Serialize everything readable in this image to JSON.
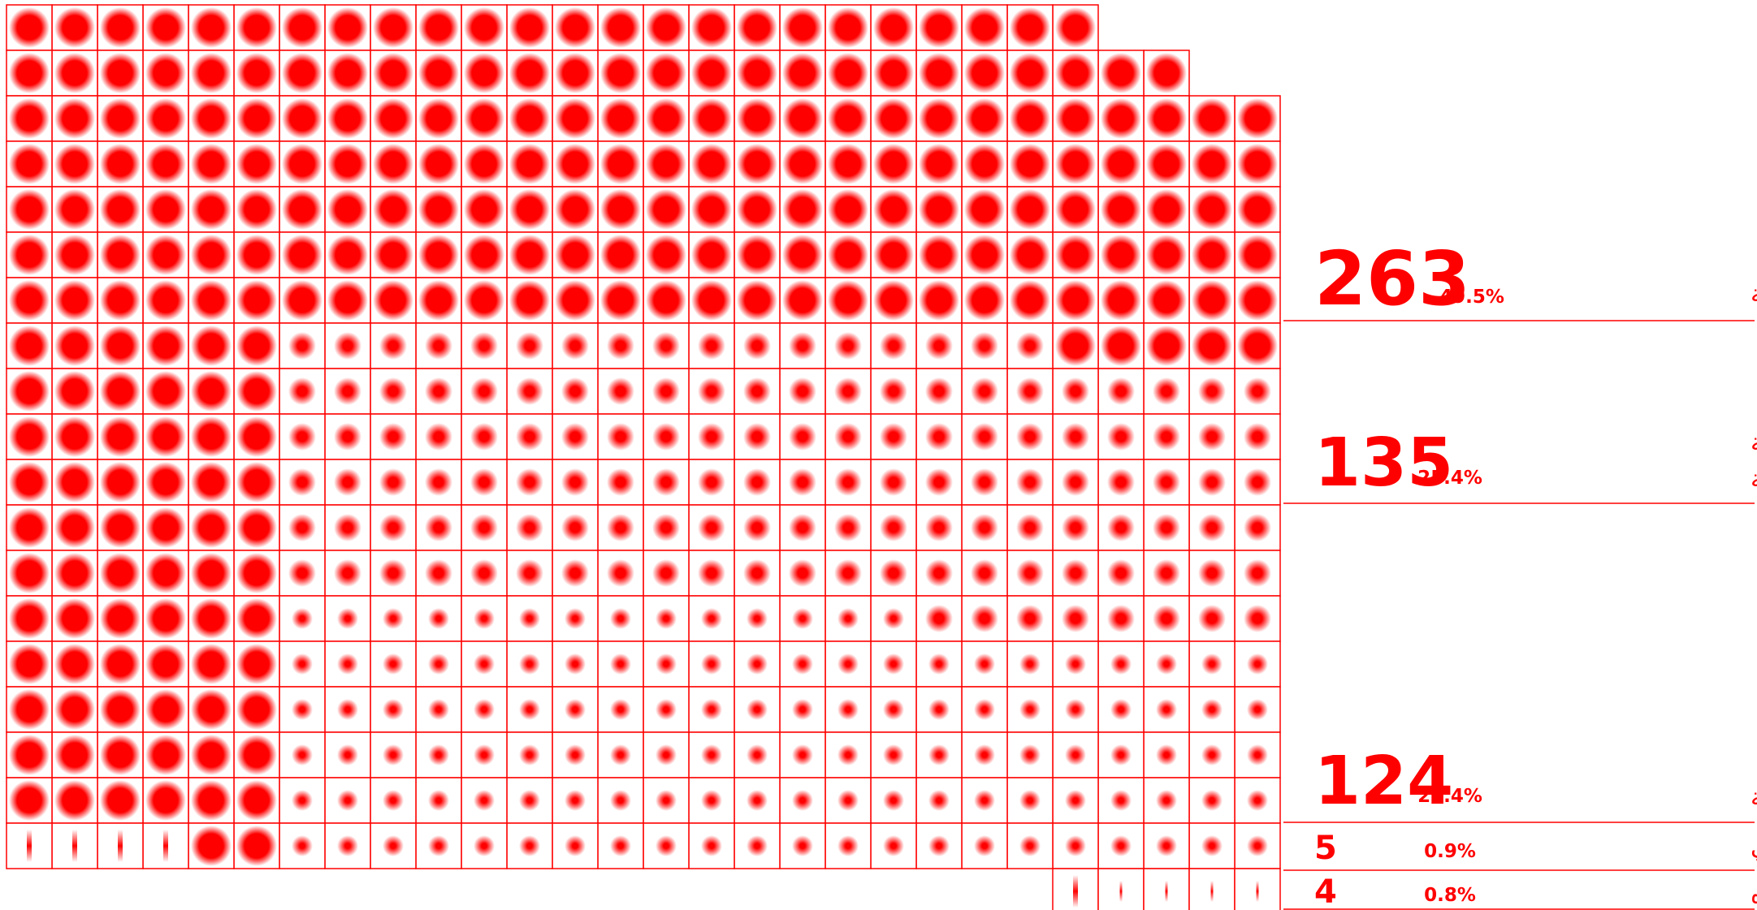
{
  "colors": {
    "accent": "#ff0000",
    "background": "#ffffff"
  },
  "chart_data": {
    "type": "waffle",
    "unit_count": 531,
    "series": [
      {
        "label": "الرسائل النصيّة",
        "count": 263,
        "percent": "49.5%",
        "marker": "large-dot"
      },
      {
        "label_lines": [
          "الاتصالات الهاتفيّة",
          "+ الرسائل النصيّة"
        ],
        "count": 135,
        "percent": "25.4%",
        "marker": "medium-dot"
      },
      {
        "label": "الاتصالات الهاتفيّة",
        "count": 124,
        "percent": "23.4%",
        "marker": "small-dot"
      },
      {
        "label": "البريد الإلكتروني",
        "count": 5,
        "percent": "0.9%",
        "marker": "vertical-bar"
      },
      {
        "label": "غيره",
        "count": 4,
        "percent": "0.8%",
        "marker": "thin-vertical-bar"
      }
    ]
  }
}
